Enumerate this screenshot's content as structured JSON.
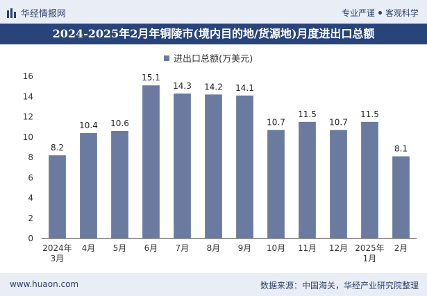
{
  "header": {
    "brand": "华经情报网",
    "motto_left": "专业严谨",
    "motto_right": "客观科学"
  },
  "title": "2024-2025年2月年铜陵市(境内目的地/货源地)月度进出口总额",
  "footer": {
    "site": "www.huaon.com",
    "source": "数据来源：中国海关，华经产业研究院整理"
  },
  "colors": {
    "bar": "#6a7b9f",
    "title_bg": "#28447a",
    "band_bg": "#e9eef6"
  },
  "chart_data": {
    "type": "bar",
    "categories": [
      [
        "2024年",
        "3月"
      ],
      [
        "4月"
      ],
      [
        "5月"
      ],
      [
        "6月"
      ],
      [
        "7月"
      ],
      [
        "8月"
      ],
      [
        "9月"
      ],
      [
        "10月"
      ],
      [
        "11月"
      ],
      [
        "12月"
      ],
      [
        "2025年",
        "1月"
      ],
      [
        "2月"
      ]
    ],
    "series": [
      {
        "name": "进出口总额(万美元)",
        "values": [
          8.2,
          10.4,
          10.6,
          15.1,
          14.3,
          14.2,
          14.1,
          10.7,
          11.5,
          10.7,
          11.5,
          8.1
        ]
      }
    ],
    "ylim": [
      0,
      16
    ],
    "yticks": [
      0,
      2,
      4,
      6,
      8,
      10,
      12,
      14,
      16
    ],
    "legend": "top-center",
    "grid": false
  }
}
